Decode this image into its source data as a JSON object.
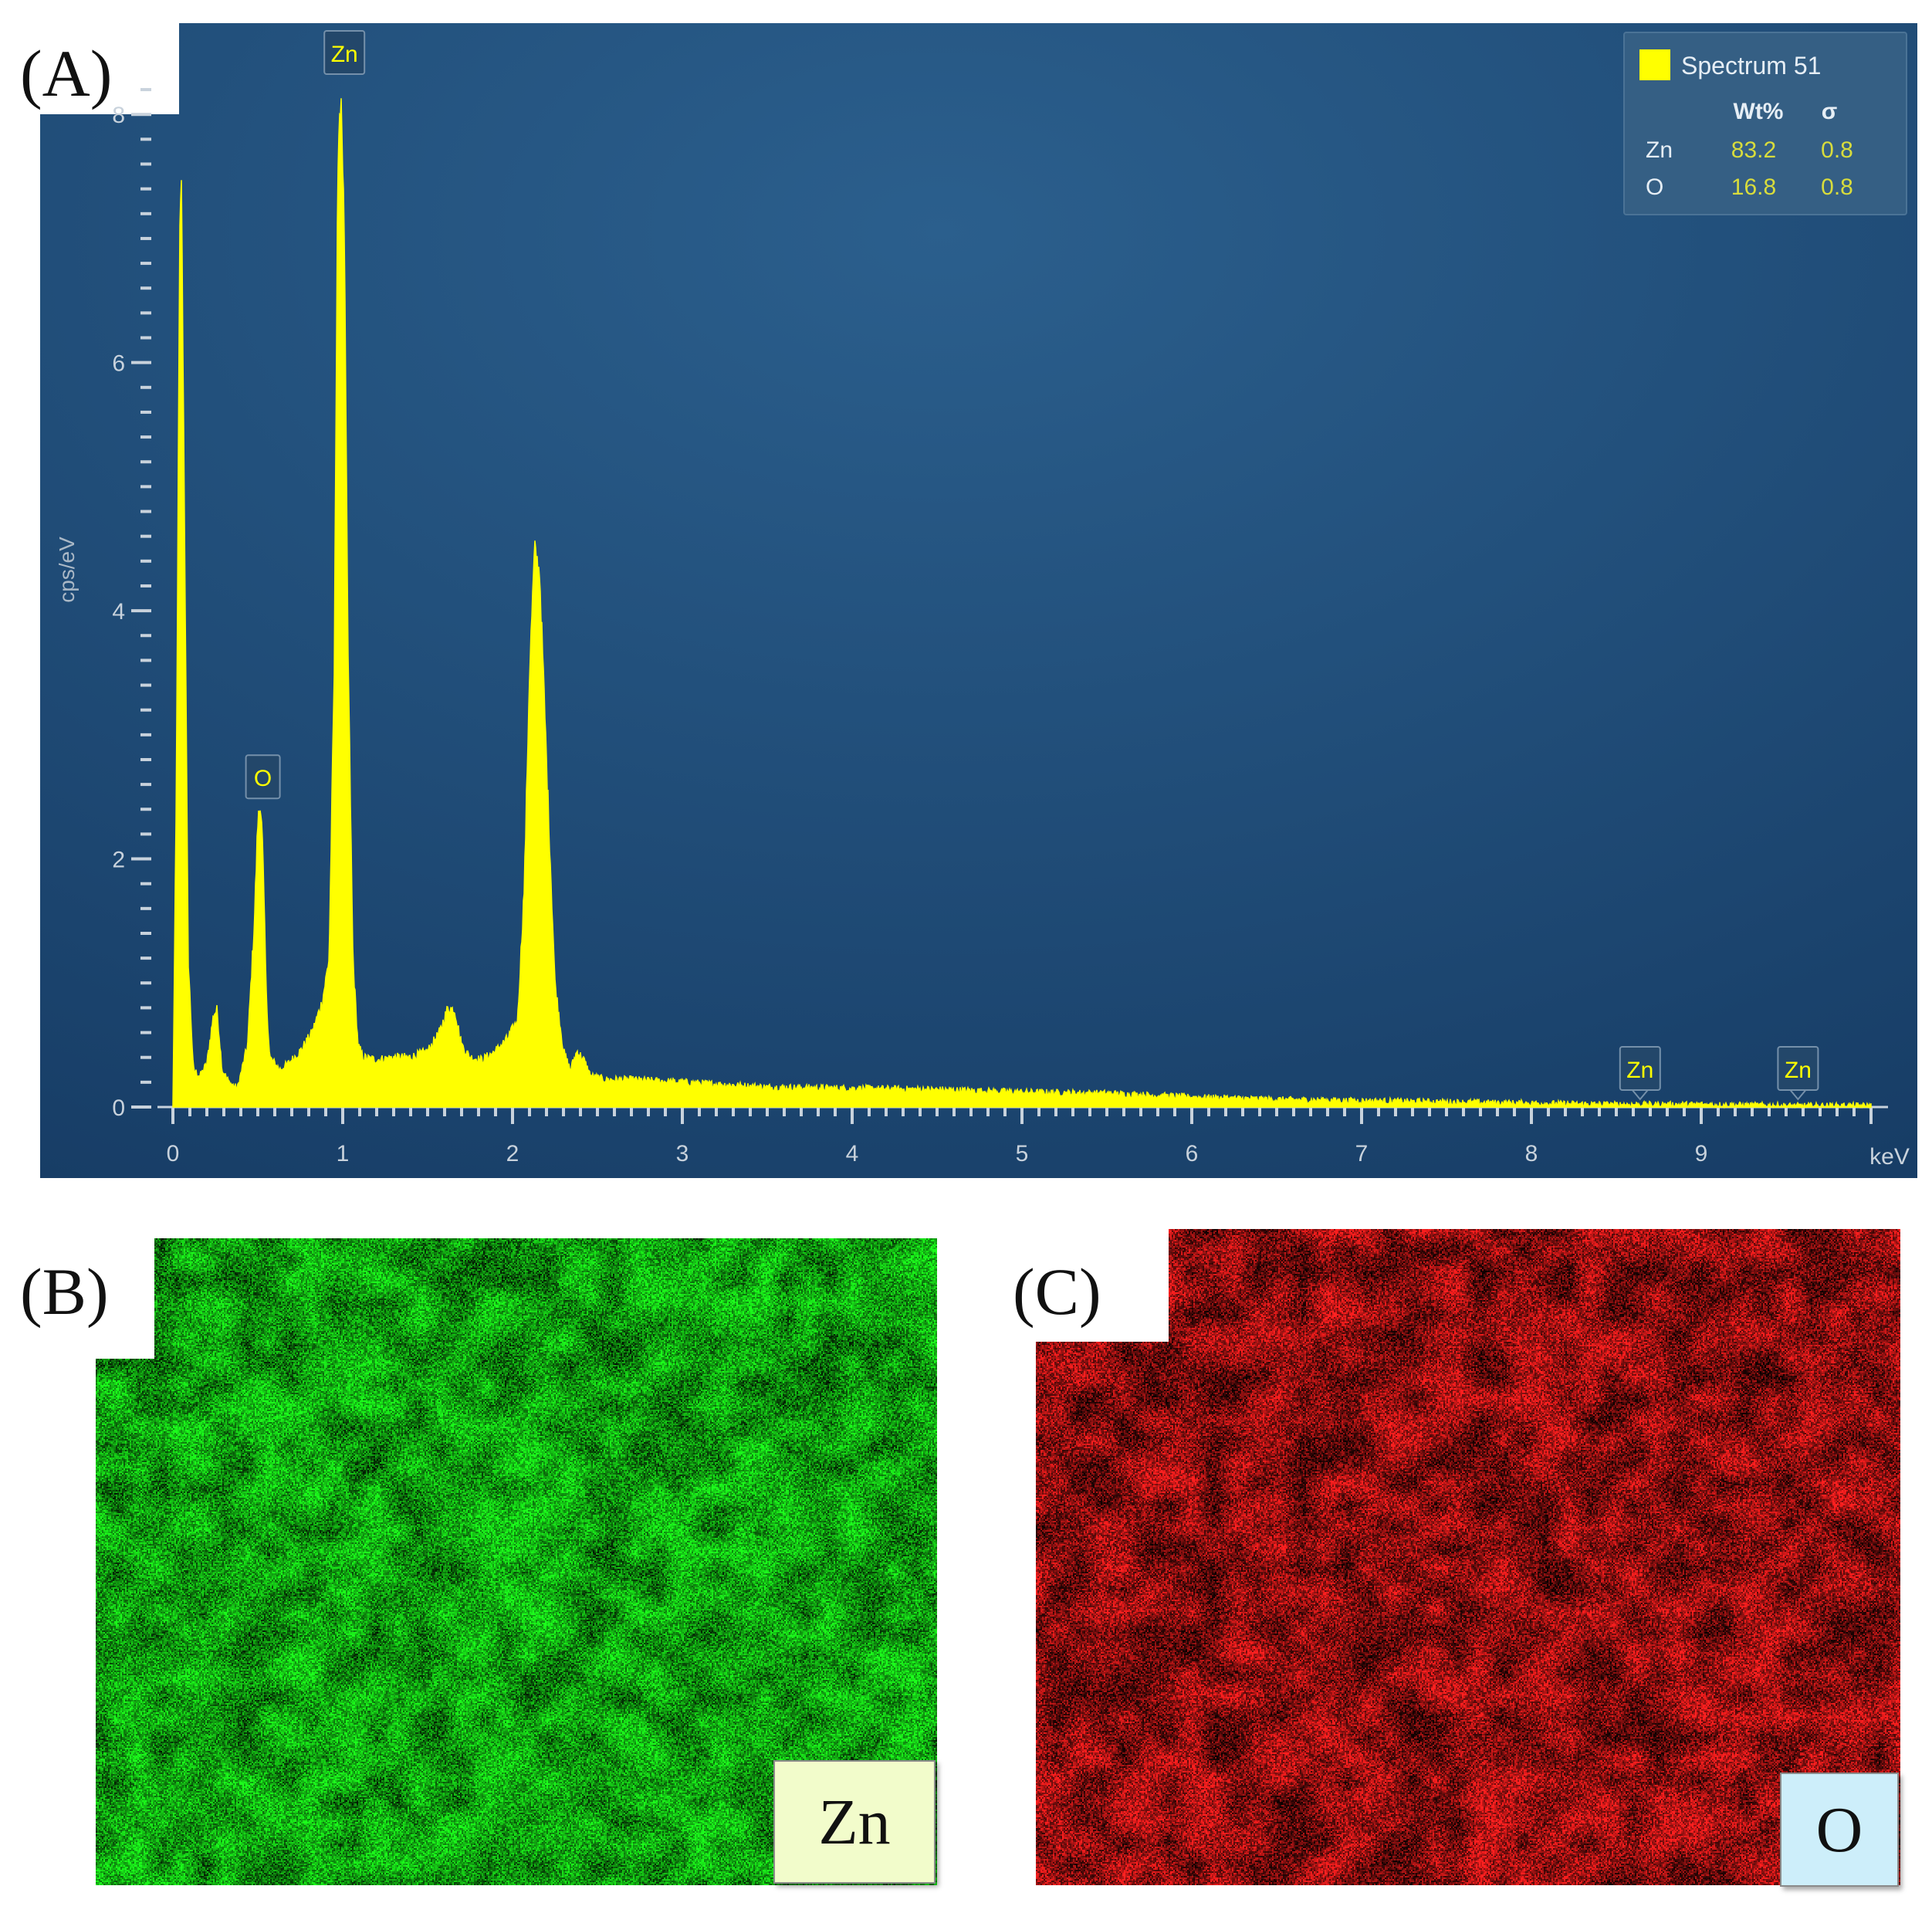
{
  "panel_a": {
    "label": "(A)",
    "colors": {
      "spectrum": "#ffff00",
      "background": "#1e4a78",
      "axis": "#c8d2dc"
    },
    "chart_data": {
      "type": "area",
      "title": "",
      "xlabel": "keV",
      "ylabel": "cps/eV",
      "xlim": [
        0,
        10
      ],
      "ylim": [
        0,
        8.3
      ],
      "x_ticks": [
        "0",
        "1",
        "2",
        "3",
        "4",
        "5",
        "6",
        "7",
        "8",
        "9"
      ],
      "y_ticks": [
        "0",
        "2",
        "4",
        "6",
        "8"
      ],
      "series": [
        {
          "name": "Spectrum 51",
          "x": [
            0,
            0.02,
            0.04,
            0.05,
            0.07,
            0.09,
            0.12,
            0.16,
            0.2,
            0.24,
            0.26,
            0.29,
            0.33,
            0.38,
            0.44,
            0.48,
            0.5,
            0.52,
            0.53,
            0.55,
            0.57,
            0.6,
            0.63,
            0.68,
            0.75,
            0.82,
            0.88,
            0.92,
            0.95,
            0.97,
            0.99,
            1.01,
            1.03,
            1.06,
            1.09,
            1.12,
            1.2,
            1.3,
            1.4,
            1.5,
            1.57,
            1.62,
            1.66,
            1.7,
            1.75,
            1.82,
            1.9,
            1.97,
            2.03,
            2.07,
            2.1,
            2.13,
            2.16,
            2.2,
            2.25,
            2.3,
            2.34,
            2.38,
            2.42,
            2.46,
            2.55,
            2.7,
            3.0,
            3.5,
            4.0,
            4.5,
            5.0,
            5.5,
            6.0,
            6.5,
            7.0,
            7.5,
            8.0,
            8.5,
            9.0,
            9.5,
            10.0
          ],
          "y": [
            0,
            2.5,
            7.0,
            7.5,
            4.5,
            1.2,
            0.3,
            0.25,
            0.35,
            0.75,
            0.78,
            0.3,
            0.2,
            0.15,
            0.5,
            1.5,
            2.3,
            2.45,
            2.0,
            0.9,
            0.4,
            0.35,
            0.3,
            0.35,
            0.45,
            0.6,
            0.85,
            1.2,
            3.5,
            7.5,
            8.2,
            7.0,
            3.8,
            1.2,
            0.5,
            0.4,
            0.38,
            0.4,
            0.4,
            0.45,
            0.6,
            0.8,
            0.78,
            0.5,
            0.4,
            0.38,
            0.45,
            0.55,
            0.7,
            1.8,
            3.5,
            4.5,
            4.3,
            2.8,
            1.0,
            0.45,
            0.3,
            0.45,
            0.38,
            0.25,
            0.22,
            0.22,
            0.2,
            0.16,
            0.15,
            0.14,
            0.12,
            0.11,
            0.08,
            0.06,
            0.05,
            0.04,
            0.03,
            0.02,
            0.02,
            0.01,
            0.01
          ]
        }
      ],
      "peak_labels": [
        {
          "text": "O",
          "x": 0.53,
          "y": 2.45
        },
        {
          "text": "Zn",
          "x": 1.01,
          "y": 8.2
        },
        {
          "text": "Zn",
          "x": 8.64,
          "y": 0.03
        },
        {
          "text": "Zn",
          "x": 9.57,
          "y": 0.02
        }
      ],
      "legend": {
        "position": "top-right",
        "series_name": "Spectrum 51",
        "headers": [
          "Wt%",
          "σ"
        ],
        "rows": [
          {
            "element": "Zn",
            "wt": "83.2",
            "sigma": "0.8"
          },
          {
            "element": "O",
            "wt": "16.8",
            "sigma": "0.8"
          }
        ]
      }
    }
  },
  "panel_b": {
    "label": "(B)",
    "element": "Zn",
    "map_color": "#19e619",
    "tag_bg": "#f2fccb"
  },
  "panel_c": {
    "label": "(C)",
    "element": "O",
    "map_color": "#ff1e1e",
    "tag_bg": "#cdeefa"
  }
}
